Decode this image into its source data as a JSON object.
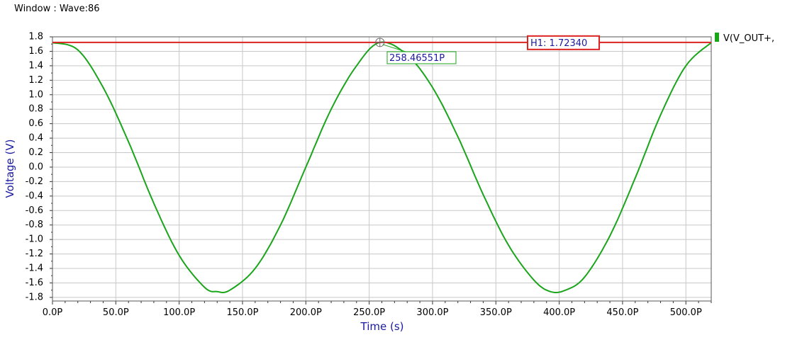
{
  "window": {
    "title": "Window : Wave:86"
  },
  "colors": {
    "trace": "#1aa51a",
    "cursor": "#dd2222",
    "grid": "#c8c8c8",
    "axis_title": "#1a1aa0"
  },
  "chart_data": {
    "type": "line",
    "title": "",
    "xlabel": "Time (s)",
    "ylabel": "Voltage (V)",
    "xlim": [
      0,
      520
    ],
    "ylim": [
      -1.85,
      1.8
    ],
    "grid": true,
    "legend_position": "top-right",
    "x_ticks": [
      "0.0P",
      "50.0P",
      "100.0P",
      "150.0P",
      "200.0P",
      "250.0P",
      "300.0P",
      "350.0P",
      "400.0P",
      "450.0P",
      "500.0P"
    ],
    "y_ticks": [
      "1.8",
      "1.6",
      "1.4",
      "1.2",
      "1.0",
      "0.8",
      "0.6",
      "0.4",
      "0.2",
      "0.0",
      "-0.2",
      "-0.4",
      "-0.6",
      "-0.8",
      "-1.0",
      "-1.2",
      "-1.4",
      "-1.6",
      "-1.8"
    ],
    "series": [
      {
        "name": "V(V_OUT+,",
        "x": [
          0,
          20,
          40,
          60,
          80,
          100,
          120,
          130,
          140,
          160,
          180,
          200,
          220,
          240,
          258.5,
          280,
          300,
          320,
          340,
          360,
          380,
          393,
          405,
          420,
          440,
          460,
          480,
          500,
          520
        ],
        "y": [
          1.72,
          1.62,
          1.1,
          0.35,
          -0.5,
          -1.22,
          -1.66,
          -1.72,
          -1.7,
          -1.4,
          -0.8,
          0.0,
          0.8,
          1.4,
          1.7234,
          1.55,
          1.1,
          0.42,
          -0.38,
          -1.08,
          -1.56,
          -1.72,
          -1.7,
          -1.52,
          -0.95,
          -0.15,
          0.72,
          1.4,
          1.72
        ]
      }
    ],
    "horizontal_cursor": {
      "label": "H1: 1.72340",
      "value": 1.7234
    },
    "marker": {
      "label": "258.46551P",
      "x": 258.46551,
      "y": 1.7234
    }
  }
}
